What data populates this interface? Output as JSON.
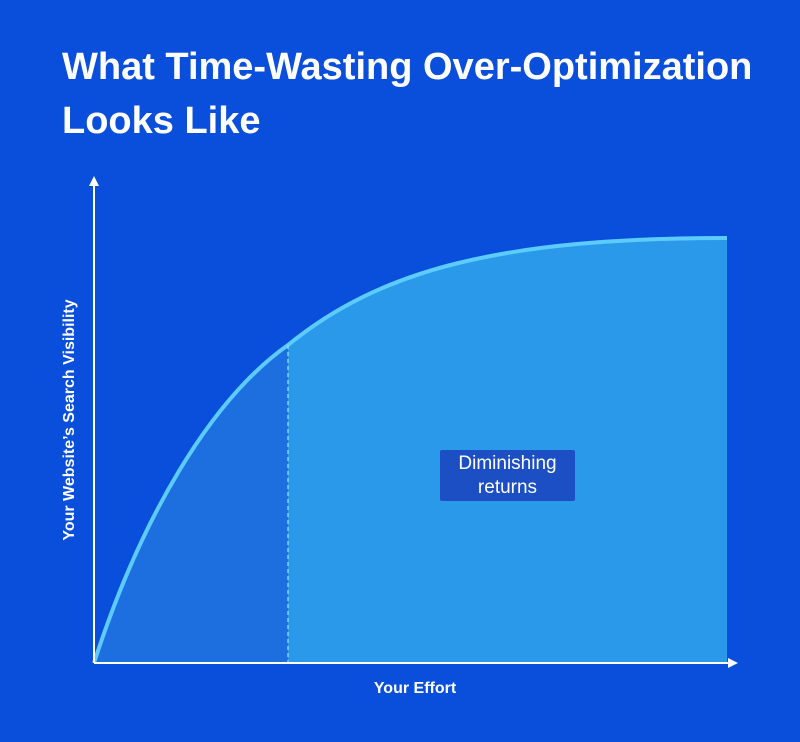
{
  "title": "What Time-Wasting Over-Optimization Looks Like",
  "y_axis_label": "Your Website’s Search Visibility",
  "x_axis_label": "Your Effort",
  "annotation": "Diminishing returns"
}
